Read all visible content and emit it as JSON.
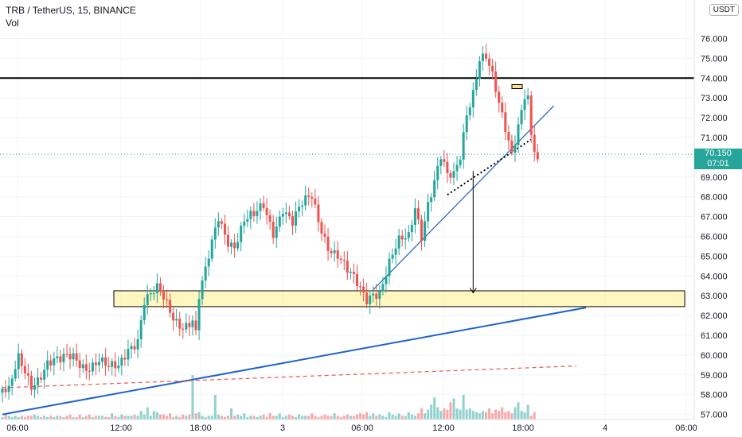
{
  "header": {
    "symbol": "TRB / TetherUS, 15, BINANCE",
    "indicator": "Vol"
  },
  "axis": {
    "currency": "USDT"
  },
  "price_tag": {
    "price": "70.150",
    "countdown": "07:01"
  },
  "chart_data": {
    "type": "candlestick",
    "title": "TRB / TetherUS, 15, BINANCE",
    "ylim": [
      56.8,
      77.0
    ],
    "y_ticks": [
      "57.000",
      "58.000",
      "59.000",
      "60.000",
      "61.000",
      "62.000",
      "63.000",
      "64.000",
      "65.000",
      "66.000",
      "67.000",
      "68.000",
      "69.000",
      "70.000",
      "71.000",
      "72.000",
      "73.000",
      "74.000",
      "75.000",
      "76.000"
    ],
    "x_ticks": [
      "06:00",
      "12:00",
      "18:00",
      "3",
      "06:00",
      "12:00",
      "18:00",
      "4",
      "06:00"
    ],
    "last_price": 70.15,
    "up_color": "#26a69a",
    "down_color": "#ef5350",
    "anchors": [
      [
        0,
        58.3
      ],
      [
        2,
        58.0
      ],
      [
        5,
        59.6
      ],
      [
        9,
        58.6
      ],
      [
        14,
        59.7
      ],
      [
        18,
        59.5
      ],
      [
        22,
        59.9
      ],
      [
        26,
        59.6
      ],
      [
        30,
        59.7
      ],
      [
        33,
        59.1
      ],
      [
        36,
        59.3
      ],
      [
        39,
        60.5
      ],
      [
        42,
        61.0
      ],
      [
        44,
        62.8
      ],
      [
        46,
        62.9
      ],
      [
        48,
        63.1
      ],
      [
        50,
        62.7
      ],
      [
        53,
        62.0
      ],
      [
        56,
        61.7
      ],
      [
        59,
        61.8
      ],
      [
        60,
        61.0
      ],
      [
        61,
        62.8
      ],
      [
        63,
        64.0
      ],
      [
        65,
        65.5
      ],
      [
        67,
        67.0
      ],
      [
        70,
        66.0
      ],
      [
        72,
        65.7
      ],
      [
        75,
        66.7
      ],
      [
        78,
        66.8
      ],
      [
        81,
        67.5
      ],
      [
        84,
        66.4
      ],
      [
        87,
        67.6
      ],
      [
        90,
        66.6
      ],
      [
        93,
        67.4
      ],
      [
        96,
        68.0
      ],
      [
        98,
        67.0
      ],
      [
        101,
        65.7
      ],
      [
        104,
        65.0
      ],
      [
        107,
        64.0
      ],
      [
        110,
        63.5
      ],
      [
        113,
        63.0
      ],
      [
        115,
        63.4
      ],
      [
        117,
        63.3
      ],
      [
        120,
        64.5
      ],
      [
        123,
        65.5
      ],
      [
        126,
        66.0
      ],
      [
        128,
        67.7
      ],
      [
        130,
        66.3
      ],
      [
        132,
        67.8
      ],
      [
        134,
        68.7
      ],
      [
        136,
        69.8
      ],
      [
        138,
        68.8
      ],
      [
        140,
        69.0
      ],
      [
        142,
        70.2
      ],
      [
        144,
        72.5
      ],
      [
        146,
        73.5
      ],
      [
        148,
        75.0
      ],
      [
        150,
        74.9
      ],
      [
        152,
        73.8
      ],
      [
        154,
        72.5
      ],
      [
        156,
        71.5
      ],
      [
        158,
        70.4
      ],
      [
        160,
        71.9
      ],
      [
        162,
        73.3
      ],
      [
        163,
        73.0
      ],
      [
        164,
        71.0
      ],
      [
        165,
        70.2
      ],
      [
        166,
        69.9
      ]
    ],
    "volume": [
      2,
      5,
      3,
      2,
      3,
      2,
      3,
      2,
      3,
      3,
      4,
      3,
      2,
      3,
      2,
      3,
      2,
      3,
      3,
      2,
      3,
      4,
      2,
      2,
      4,
      2,
      3,
      4,
      2,
      3,
      3,
      3,
      2,
      2,
      5,
      3,
      2,
      4,
      3,
      3,
      3,
      4,
      3,
      7,
      4,
      10,
      3,
      7,
      6,
      4,
      4,
      3,
      5,
      2,
      3,
      2,
      4,
      3,
      4,
      36,
      5,
      6,
      3,
      2,
      3,
      3,
      20,
      4,
      3,
      2,
      3,
      9,
      3,
      4,
      3,
      5,
      2,
      3,
      3,
      2,
      3,
      4,
      2,
      5,
      3,
      3,
      5,
      2,
      3,
      4,
      3,
      2,
      4,
      3,
      3,
      3,
      5,
      3,
      2,
      3,
      4,
      3,
      3,
      5,
      3,
      2,
      3,
      4,
      3,
      3,
      4,
      5,
      4,
      6,
      3,
      5,
      3,
      4,
      3,
      2,
      6,
      4,
      3,
      5,
      3,
      3,
      6,
      4,
      3,
      5,
      9,
      5,
      8,
      12,
      18,
      10,
      7,
      9,
      8,
      14,
      17,
      9,
      8,
      20,
      8,
      9,
      7,
      6,
      5,
      7,
      6,
      9,
      5,
      8,
      7,
      10,
      6,
      7,
      5,
      10,
      14,
      7,
      6,
      12,
      3,
      6
    ],
    "levels": [
      {
        "price": 74.0,
        "color": "#000000"
      }
    ],
    "zone": {
      "from": 62.45,
      "to": 63.25
    },
    "trendlines": [
      {
        "from": [
          0,
          57.0
        ],
        "to": [
          181,
          62.4
        ],
        "color": "#1e63c8"
      },
      {
        "from": [
          115,
          63.3
        ],
        "to": [
          171,
          72.6
        ],
        "color": "#1e63c8"
      },
      {
        "from": [
          0,
          58.35
        ],
        "to": [
          178,
          59.45
        ],
        "color": "#ef5350",
        "dashed": true
      },
      {
        "from": [
          138,
          68.1
        ],
        "to": [
          164,
          70.9
        ],
        "color": "#000000",
        "dotted": true
      }
    ],
    "arrow": {
      "x": 146,
      "from": 69.3,
      "to": 63.15
    }
  }
}
